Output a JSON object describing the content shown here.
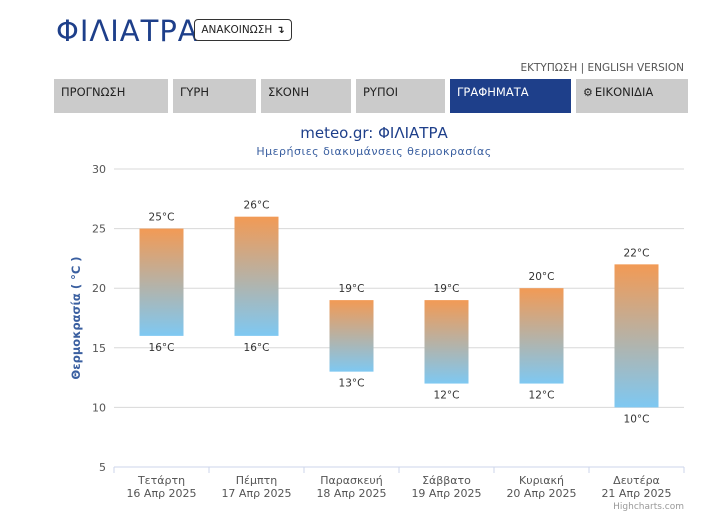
{
  "header": {
    "city": "ΦΙΛΙΑΤΡΑ",
    "refresh_label": "ΑΝΑΚΟΙΝΩΣΗ",
    "print_link": "ΕΚΤΥΠΩΣΗ",
    "separator": "|",
    "english_link": "ENGLISH VERSION"
  },
  "tabs": [
    {
      "label": "ΠΡΟΓΝΩΣΗ",
      "active": false
    },
    {
      "label": "ΓΥΡΗ",
      "active": false
    },
    {
      "label": "ΣΚΟΝΗ",
      "active": false
    },
    {
      "label": "ΡΥΠΟΙ",
      "active": false
    },
    {
      "label": "ΓΡΑΦΗΜΑΤΑ",
      "active": true
    },
    {
      "label": "ΕΙΚΟΝΙΔΙΑ",
      "active": false,
      "icon": "gear-icon"
    }
  ],
  "colors": {
    "brand": "#1e3f8a",
    "bar_top": "#f29a55",
    "bar_bottom": "#7ec8f2",
    "tab_inactive": "#cbcbcb"
  },
  "chart_data": {
    "type": "bar",
    "subtype": "columnrange",
    "title": "meteo.gr: ΦΙΛΙΑΤΡΑ",
    "subtitle": "Ημερήσιες διακυμάνσεις θερμοκρασίας",
    "ylabel": "Θερμοκρασία ( °C )",
    "ylim": [
      5,
      30
    ],
    "yticks": [
      5,
      10,
      15,
      20,
      25,
      30
    ],
    "grid": true,
    "unit": "°C",
    "categories": [
      [
        "Τετάρτη",
        "16 Απρ 2025"
      ],
      [
        "Πέμπτη",
        "17 Απρ 2025"
      ],
      [
        "Παρασκευή",
        "18 Απρ 2025"
      ],
      [
        "Σάββατο",
        "19 Απρ 2025"
      ],
      [
        "Κυριακή",
        "20 Απρ 2025"
      ],
      [
        "Δευτέρα",
        "21 Απρ 2025"
      ]
    ],
    "low": [
      16,
      16,
      13,
      12,
      12,
      10
    ],
    "high": [
      25,
      26,
      19,
      19,
      20,
      22
    ],
    "credits": "Highcharts.com"
  }
}
